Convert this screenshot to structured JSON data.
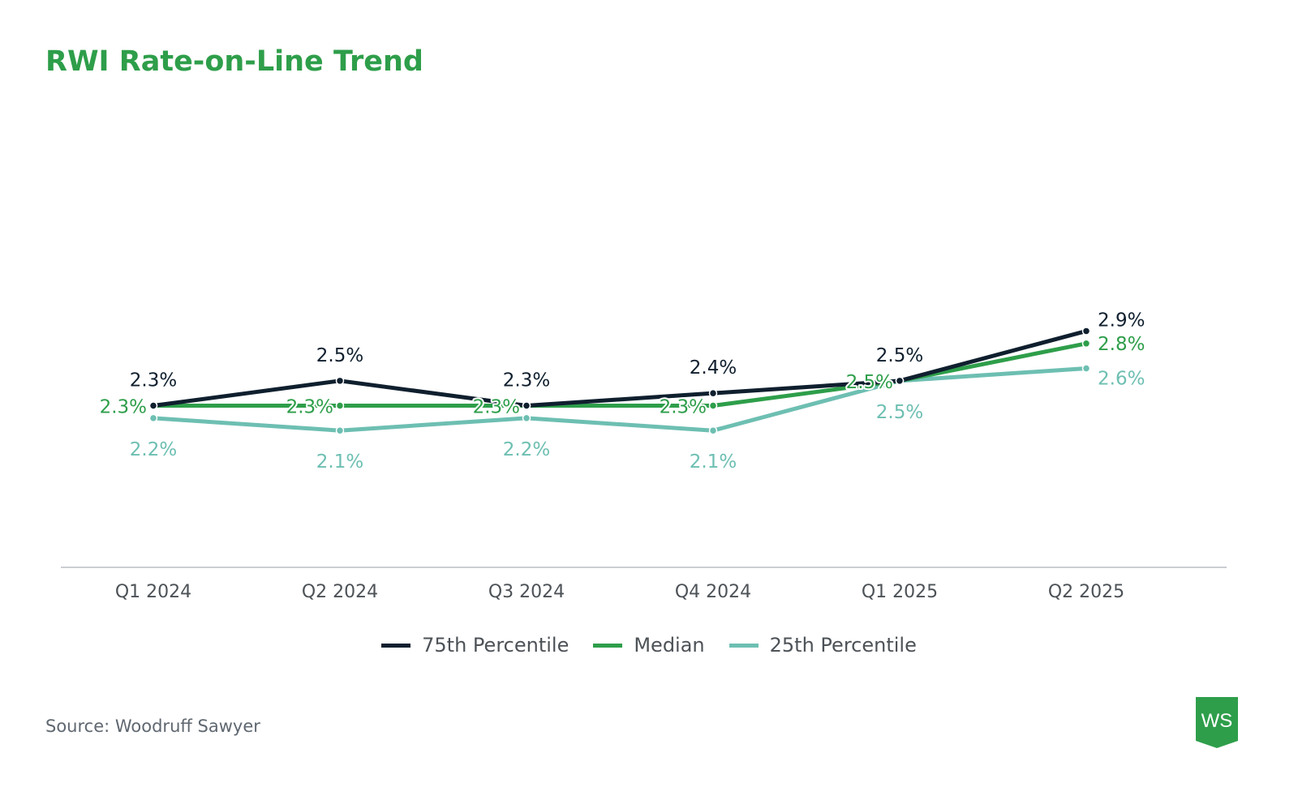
{
  "page": {
    "title": "RWI Rate-on-Line Trend",
    "source": "Source: Woodruff Sawyer",
    "logo_text": "WS",
    "logo_color": "#2e9e4a"
  },
  "chart_data": {
    "type": "line",
    "title": "RWI Rate-on-Line Trend",
    "xlabel": "",
    "ylabel": "",
    "categories": [
      "Q1 2024",
      "Q2 2024",
      "Q3 2024",
      "Q4 2024",
      "Q1 2025",
      "Q2 2025"
    ],
    "series": [
      {
        "name": "75th Percentile",
        "color": "#0f1f2e",
        "values": [
          2.3,
          2.5,
          2.3,
          2.4,
          2.5,
          2.9
        ],
        "labels": [
          "2.3%",
          "2.5%",
          "2.3%",
          "2.4%",
          "2.5%",
          "2.9%"
        ],
        "label_position": "above"
      },
      {
        "name": "Median",
        "color": "#2e9e4a",
        "values": [
          2.3,
          2.3,
          2.3,
          2.3,
          2.5,
          2.8
        ],
        "labels": [
          "2.3%",
          "2.3%",
          "2.3%",
          "2.3%",
          "2.5%",
          "2.8%"
        ],
        "label_position": "left"
      },
      {
        "name": "25th Percentile",
        "color": "#6dbfb2",
        "values": [
          2.2,
          2.1,
          2.2,
          2.1,
          2.5,
          2.6
        ],
        "labels": [
          "2.2%",
          "2.1%",
          "2.2%",
          "2.1%",
          "2.5%",
          "2.6%"
        ],
        "label_position": "below"
      }
    ],
    "ylim": [
      1.0,
      3.9
    ],
    "y_axis_visible": false,
    "grid": false,
    "legend": {
      "placement": "bottom-center",
      "entries": [
        "75th Percentile",
        "Median",
        "25th Percentile"
      ]
    }
  }
}
